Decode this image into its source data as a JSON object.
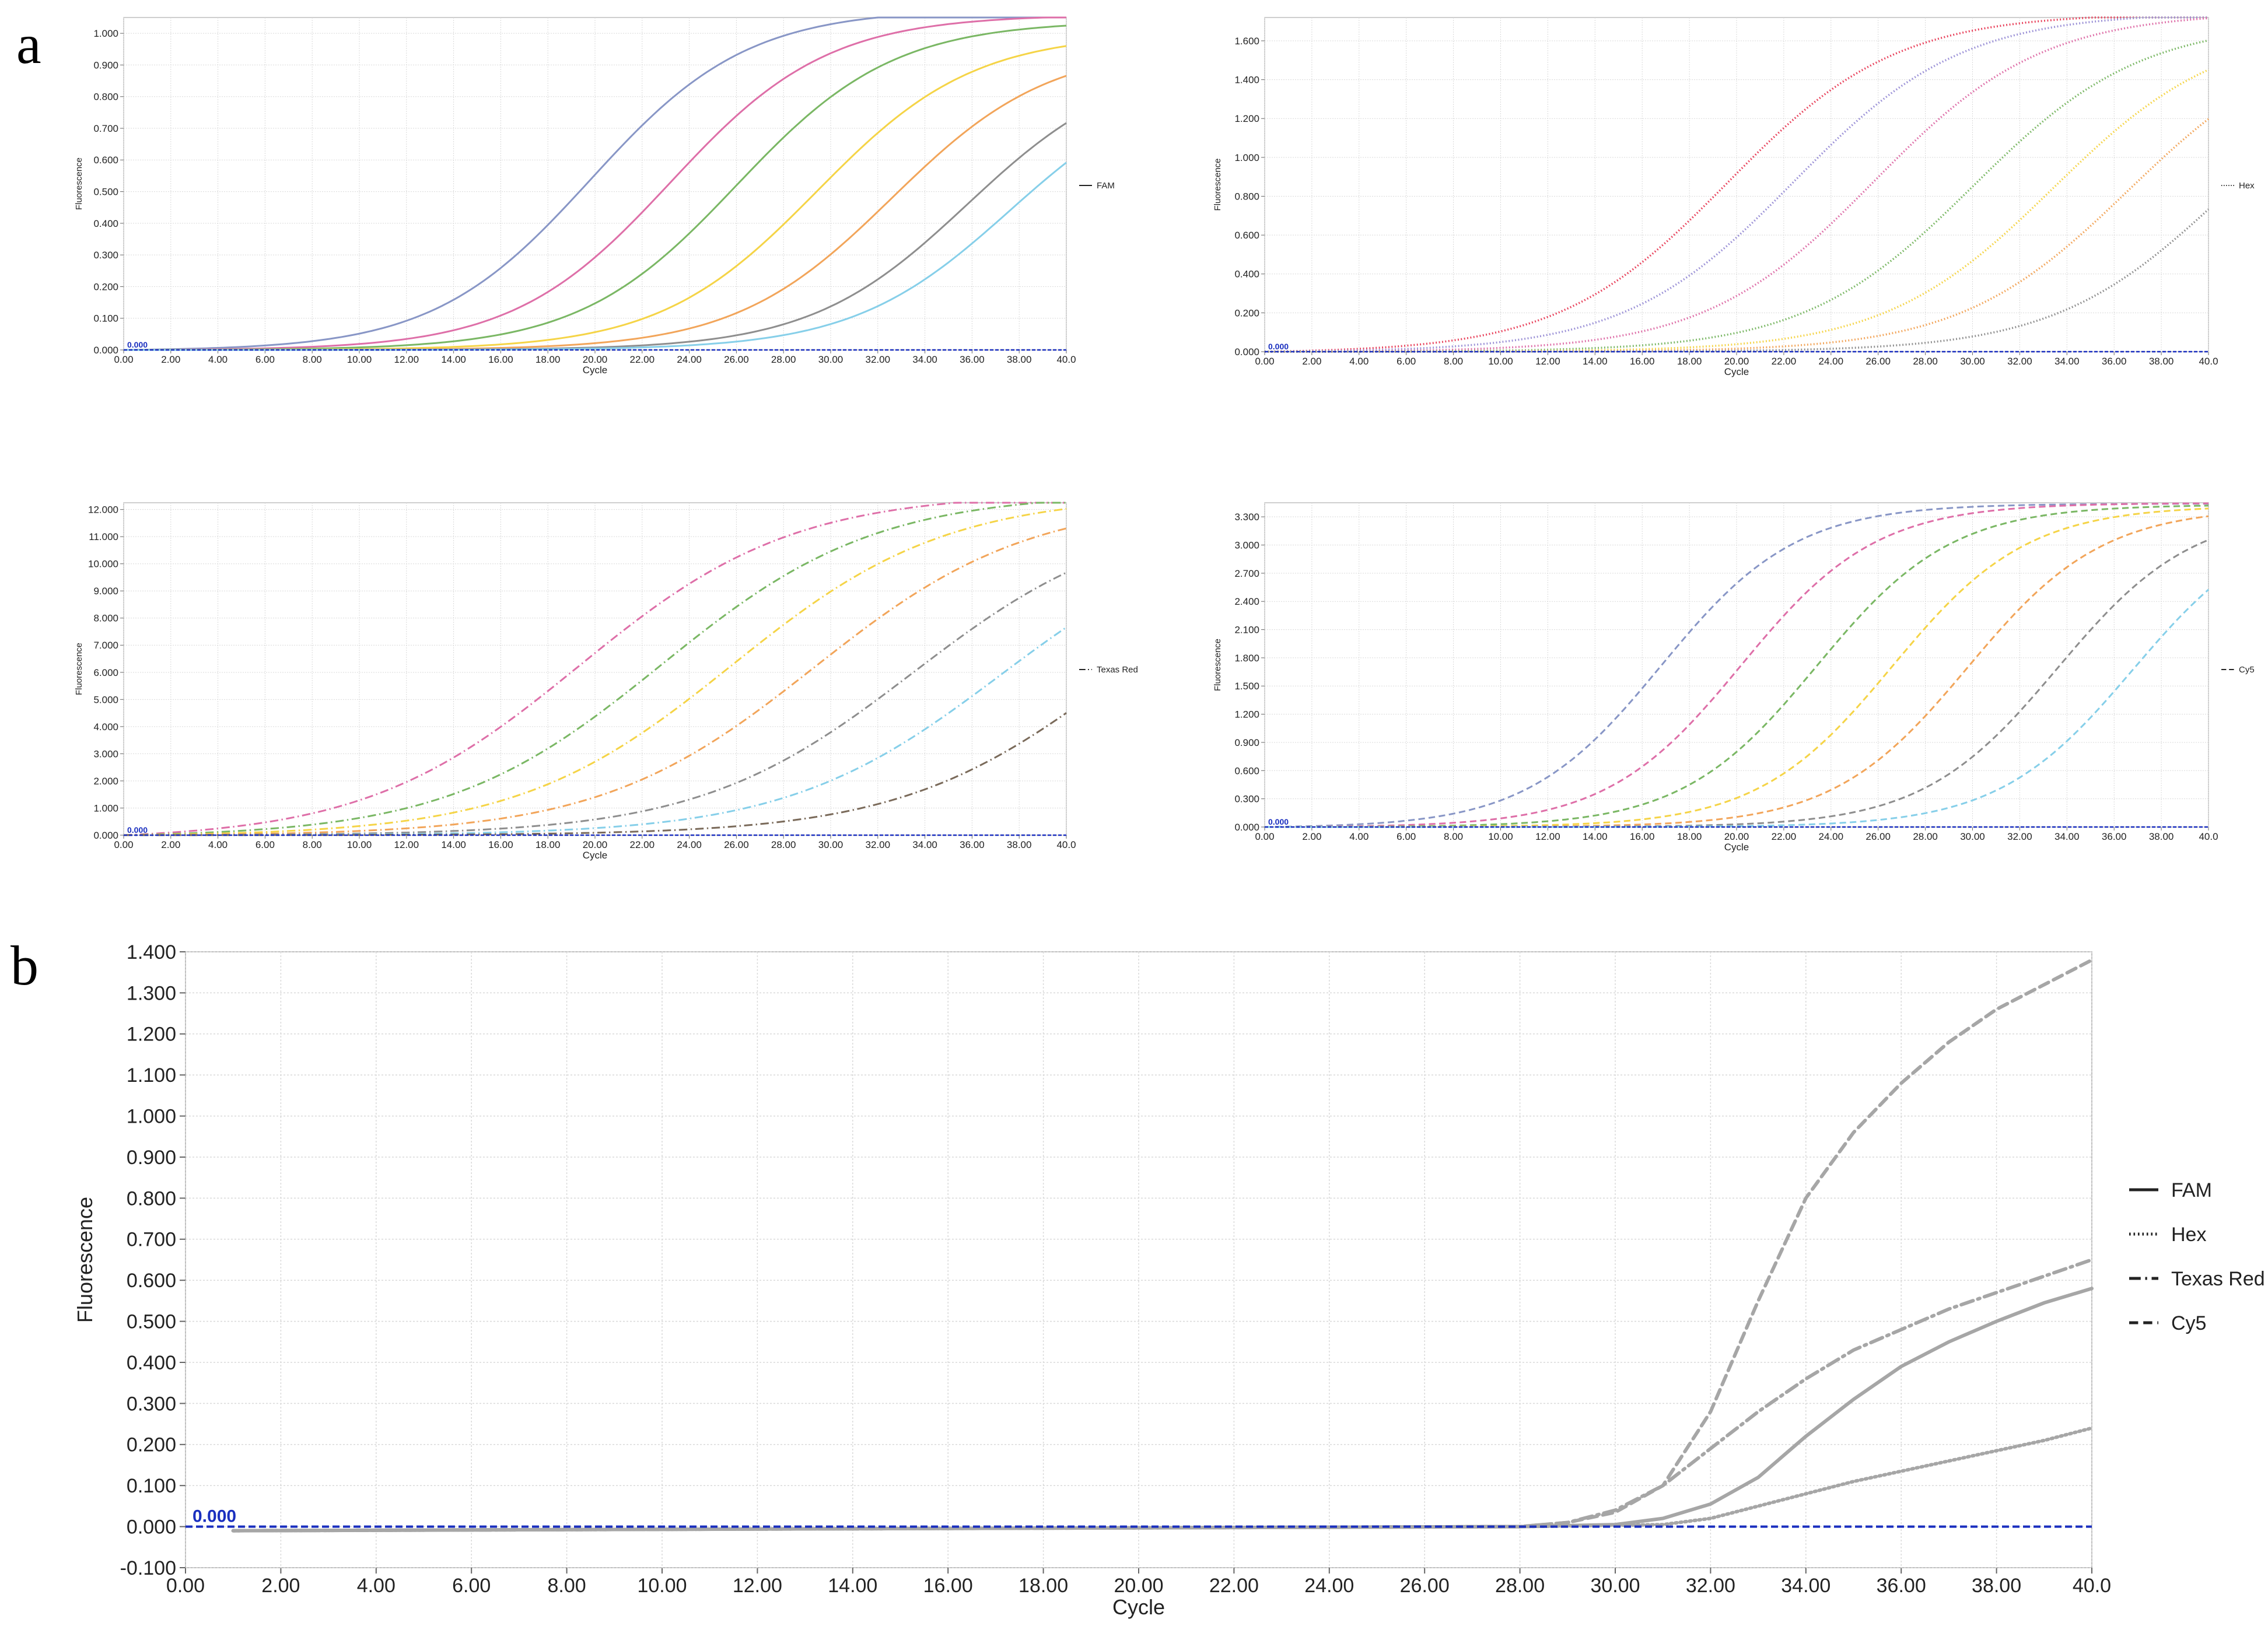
{
  "panel_labels": {
    "a": "a",
    "b": "b"
  },
  "chart_data": [
    {
      "id": "a-fam",
      "type": "line",
      "xlabel": "Cycle",
      "ylabel": "Fluorescence",
      "legend": "FAM",
      "dash": "solid",
      "threshold_label": "0.000",
      "xlim": [
        0,
        40
      ],
      "ylim": [
        0,
        1.05
      ],
      "xticks": [
        "0.00",
        "2.00",
        "4.00",
        "6.00",
        "8.00",
        "10.00",
        "12.00",
        "14.00",
        "16.00",
        "18.00",
        "20.00",
        "22.00",
        "24.00",
        "26.00",
        "28.00",
        "30.00",
        "32.00",
        "34.00",
        "36.00",
        "38.00",
        "40.0"
      ],
      "yticks": [
        "0.000",
        "0.100",
        "0.200",
        "0.300",
        "0.400",
        "0.500",
        "0.600",
        "0.700",
        "0.800",
        "0.900",
        "1.000"
      ],
      "series": [
        {
          "color": "#8896c6",
          "ct": 19.8,
          "max": 1.08,
          "k": 0.3
        },
        {
          "color": "#de6fa8",
          "ct": 23.2,
          "max": 1.06,
          "k": 0.3
        },
        {
          "color": "#7ab764",
          "ct": 26.0,
          "max": 1.04,
          "k": 0.3
        },
        {
          "color": "#f5d447",
          "ct": 29.4,
          "max": 1.0,
          "k": 0.3
        },
        {
          "color": "#f2a55a",
          "ct": 32.6,
          "max": 0.96,
          "k": 0.3
        },
        {
          "color": "#8e8e8e",
          "ct": 35.8,
          "max": 0.92,
          "k": 0.3
        },
        {
          "color": "#86cfe9",
          "ct": 37.6,
          "max": 0.88,
          "k": 0.3
        }
      ]
    },
    {
      "id": "a-hex",
      "type": "line",
      "xlabel": "Cycle",
      "ylabel": "Fluorescence",
      "legend": "Hex",
      "dash": "dotted",
      "threshold_label": "0.000",
      "xlim": [
        0,
        40
      ],
      "ylim": [
        0,
        1.72
      ],
      "xticks": [
        "0.00",
        "2.00",
        "4.00",
        "6.00",
        "8.00",
        "10.00",
        "12.00",
        "14.00",
        "16.00",
        "18.00",
        "20.00",
        "22.00",
        "24.00",
        "26.00",
        "28.00",
        "30.00",
        "32.00",
        "34.00",
        "36.00",
        "38.00",
        "40.0"
      ],
      "yticks": [
        "0.000",
        "0.200",
        "0.400",
        "0.600",
        "0.800",
        "1.000",
        "1.200",
        "1.400",
        "1.600"
      ],
      "series": [
        {
          "color": "#e8405a",
          "ct": 19.6,
          "max": 1.75,
          "k": 0.28
        },
        {
          "color": "#9a90d6",
          "ct": 22.4,
          "max": 1.75,
          "k": 0.28
        },
        {
          "color": "#de6fa8",
          "ct": 25.8,
          "max": 1.75,
          "k": 0.28
        },
        {
          "color": "#7ab764",
          "ct": 30.0,
          "max": 1.7,
          "k": 0.28
        },
        {
          "color": "#f5d447",
          "ct": 33.4,
          "max": 1.68,
          "k": 0.28
        },
        {
          "color": "#f2a55a",
          "ct": 36.6,
          "max": 1.66,
          "k": 0.28
        },
        {
          "color": "#8e8e8e",
          "ct": 40.6,
          "max": 1.6,
          "k": 0.28
        }
      ]
    },
    {
      "id": "a-texasred",
      "type": "line",
      "xlabel": "Cycle",
      "ylabel": "Fluorescence",
      "legend": "Texas Red",
      "dash": "dashdot",
      "threshold_label": "0.000",
      "xlim": [
        0,
        40
      ],
      "ylim": [
        0,
        12.25
      ],
      "xticks": [
        "0.00",
        "2.00",
        "4.00",
        "6.00",
        "8.00",
        "10.00",
        "12.00",
        "14.00",
        "16.00",
        "18.00",
        "20.00",
        "22.00",
        "24.00",
        "26.00",
        "28.00",
        "30.00",
        "32.00",
        "34.00",
        "36.00",
        "38.00",
        "40.0"
      ],
      "yticks": [
        "0.000",
        "1.000",
        "2.000",
        "3.000",
        "4.000",
        "5.000",
        "6.000",
        "7.000",
        "8.000",
        "9.000",
        "10.000",
        "11.000",
        "12.000"
      ],
      "series": [
        {
          "color": "#de6fa8",
          "ct": 19.3,
          "max": 12.8,
          "k": 0.22
        },
        {
          "color": "#7ab764",
          "ct": 22.8,
          "max": 12.7,
          "k": 0.22
        },
        {
          "color": "#f5d447",
          "ct": 25.8,
          "max": 12.6,
          "k": 0.22
        },
        {
          "color": "#f2a55a",
          "ct": 29.3,
          "max": 12.4,
          "k": 0.22
        },
        {
          "color": "#8e8e8e",
          "ct": 33.5,
          "max": 12.0,
          "k": 0.22
        },
        {
          "color": "#86cfe9",
          "ct": 37.2,
          "max": 11.8,
          "k": 0.22
        },
        {
          "color": "#7a6a5a",
          "ct": 42.0,
          "max": 11.5,
          "k": 0.22
        }
      ]
    },
    {
      "id": "a-cy5",
      "type": "line",
      "xlabel": "Cycle",
      "ylabel": "Fluorescence",
      "legend": "Cy5",
      "dash": "dashed",
      "threshold_label": "0.000",
      "xlim": [
        0,
        40
      ],
      "ylim": [
        0,
        3.45
      ],
      "xticks": [
        "0.00",
        "2.00",
        "4.00",
        "6.00",
        "8.00",
        "10.00",
        "12.00",
        "14.00",
        "16.00",
        "18.00",
        "20.00",
        "22.00",
        "24.00",
        "26.00",
        "28.00",
        "30.00",
        "32.00",
        "34.00",
        "36.00",
        "38.00",
        "40.0"
      ],
      "yticks": [
        "0.000",
        "0.300",
        "0.600",
        "0.900",
        "1.200",
        "1.500",
        "1.800",
        "2.100",
        "2.400",
        "2.700",
        "3.000",
        "3.300"
      ],
      "series": [
        {
          "color": "#8896c6",
          "ct": 16.8,
          "max": 3.45,
          "k": 0.35
        },
        {
          "color": "#de6fa8",
          "ct": 20.2,
          "max": 3.45,
          "k": 0.35
        },
        {
          "color": "#7ab764",
          "ct": 23.4,
          "max": 3.43,
          "k": 0.35
        },
        {
          "color": "#f5d447",
          "ct": 26.6,
          "max": 3.42,
          "k": 0.35
        },
        {
          "color": "#f2a55a",
          "ct": 29.8,
          "max": 3.4,
          "k": 0.35
        },
        {
          "color": "#8e8e8e",
          "ct": 33.6,
          "max": 3.38,
          "k": 0.35
        },
        {
          "color": "#86cfe9",
          "ct": 36.8,
          "max": 3.35,
          "k": 0.35
        }
      ]
    },
    {
      "id": "b",
      "type": "line",
      "xlabel": "Cycle",
      "ylabel": "Fluorescence",
      "threshold_label": "0.000",
      "xlim": [
        0,
        40
      ],
      "ylim": [
        -0.1,
        1.4
      ],
      "xticks": [
        "0.00",
        "2.00",
        "4.00",
        "6.00",
        "8.00",
        "10.00",
        "12.00",
        "14.00",
        "16.00",
        "18.00",
        "20.00",
        "22.00",
        "24.00",
        "26.00",
        "28.00",
        "30.00",
        "32.00",
        "34.00",
        "36.00",
        "38.00",
        "40.0"
      ],
      "yticks": [
        "-0.100",
        "0.000",
        "0.100",
        "0.200",
        "0.300",
        "0.400",
        "0.500",
        "0.600",
        "0.700",
        "0.800",
        "0.900",
        "1.000",
        "1.100",
        "1.200",
        "1.300",
        "1.400"
      ],
      "legend_entries": [
        "FAM",
        "Hex",
        "Texas Red",
        "Cy5"
      ],
      "series": [
        {
          "name": "FAM",
          "dash": "solid",
          "x": [
            1,
            28,
            30,
            31,
            32,
            33,
            34,
            35,
            36,
            37,
            38,
            39,
            40
          ],
          "y": [
            -0.01,
            0.0,
            0.005,
            0.02,
            0.055,
            0.12,
            0.22,
            0.31,
            0.39,
            0.45,
            0.5,
            0.545,
            0.58
          ]
        },
        {
          "name": "Hex",
          "dash": "dotted",
          "x": [
            1,
            28,
            31,
            32,
            33,
            34,
            35,
            36,
            37,
            38,
            39,
            40
          ],
          "y": [
            -0.01,
            0.0,
            0.005,
            0.02,
            0.05,
            0.08,
            0.11,
            0.135,
            0.16,
            0.185,
            0.21,
            0.24
          ]
        },
        {
          "name": "Texas Red",
          "dash": "dashdot",
          "x": [
            1,
            28,
            29,
            30,
            31,
            32,
            33,
            34,
            35,
            36,
            37,
            38,
            39,
            40
          ],
          "y": [
            -0.01,
            0.0,
            0.01,
            0.04,
            0.1,
            0.19,
            0.28,
            0.36,
            0.43,
            0.48,
            0.53,
            0.57,
            0.61,
            0.65
          ]
        },
        {
          "name": "Cy5",
          "dash": "dashed",
          "x": [
            1,
            28,
            29,
            30,
            31,
            32,
            33,
            34,
            35,
            36,
            37,
            38,
            39,
            40
          ],
          "y": [
            -0.01,
            0.0,
            0.01,
            0.035,
            0.1,
            0.28,
            0.55,
            0.8,
            0.96,
            1.08,
            1.18,
            1.26,
            1.32,
            1.38
          ]
        }
      ]
    }
  ]
}
